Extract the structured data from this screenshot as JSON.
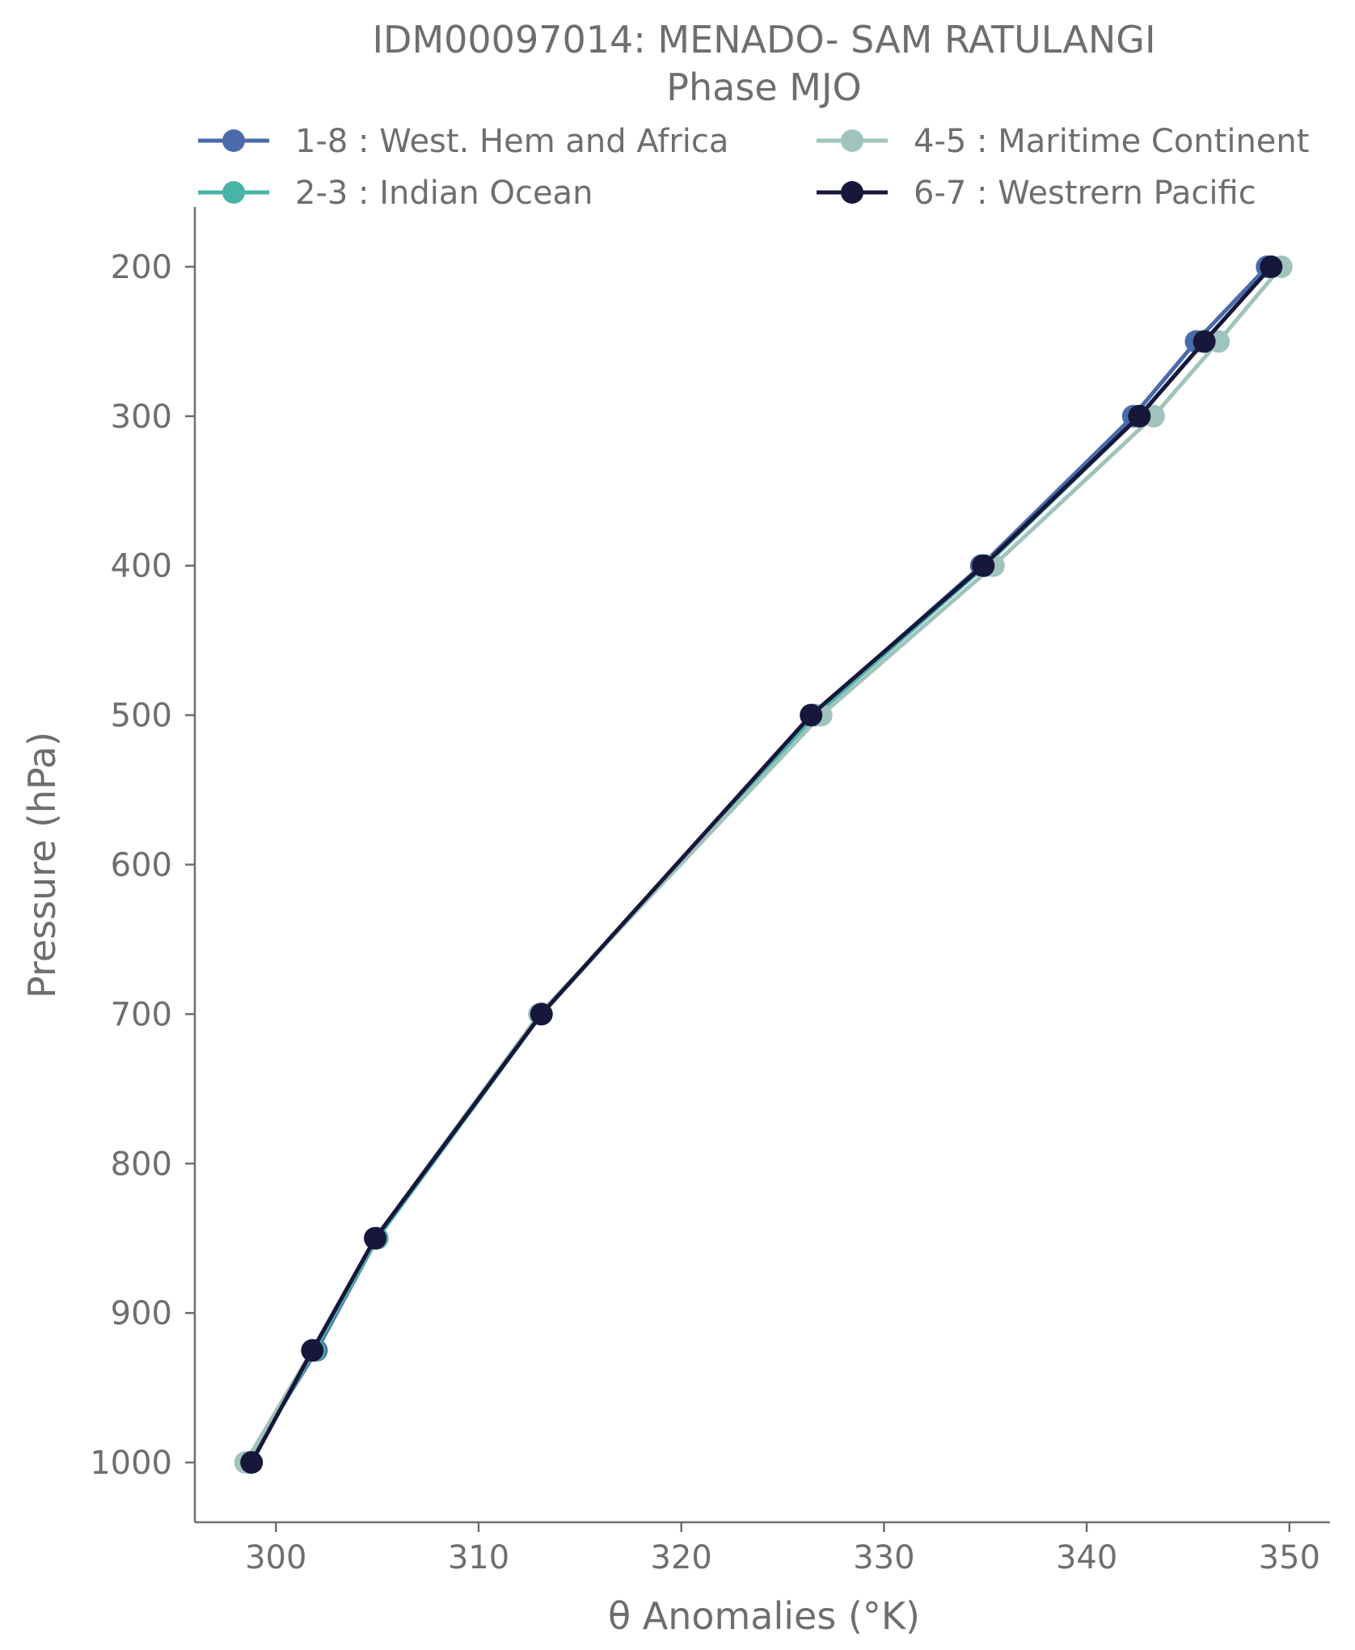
{
  "chart_data": {
    "type": "line",
    "title": "IDM00097014: MENADO- SAM RATULANGI",
    "subtitle": "Phase MJO",
    "xlabel": "θ Anomalies (°K)",
    "ylabel": "Pressure (hPa)",
    "xlim": [
      296,
      352
    ],
    "ylim": [
      1040,
      160
    ],
    "y_inverted": true,
    "xticks": [
      300,
      310,
      320,
      330,
      340,
      350
    ],
    "yticks": [
      200,
      300,
      400,
      500,
      600,
      700,
      800,
      900,
      1000
    ],
    "grid": false,
    "legend_position": "top",
    "series": [
      {
        "name": "1-8 : West. Hem and Africa",
        "color": "#4a6aab",
        "points": [
          {
            "x": 298.6,
            "y": 1000
          },
          {
            "x": 302.0,
            "y": 925
          },
          {
            "x": 305.0,
            "y": 850
          },
          {
            "x": 313.1,
            "y": 700
          },
          {
            "x": 326.5,
            "y": 500
          },
          {
            "x": 334.8,
            "y": 400
          },
          {
            "x": 342.3,
            "y": 300
          },
          {
            "x": 345.4,
            "y": 250
          },
          {
            "x": 348.9,
            "y": 200
          }
        ]
      },
      {
        "name": "2-3 : Indian Ocean",
        "color": "#49b3a8",
        "points": [
          {
            "x": 298.7,
            "y": 1000
          },
          {
            "x": 301.9,
            "y": 925
          },
          {
            "x": 305.0,
            "y": 850
          },
          {
            "x": 313.1,
            "y": 700
          },
          {
            "x": 326.6,
            "y": 500
          },
          {
            "x": 335.0,
            "y": 400
          },
          {
            "x": 342.6,
            "y": 300
          },
          {
            "x": 345.8,
            "y": 250
          },
          {
            "x": 349.1,
            "y": 200
          }
        ]
      },
      {
        "name": "4-5 : Maritime Continent",
        "color": "#a0c3bc",
        "points": [
          {
            "x": 298.5,
            "y": 1000
          },
          {
            "x": 301.8,
            "y": 925
          },
          {
            "x": 304.9,
            "y": 850
          },
          {
            "x": 313.0,
            "y": 700
          },
          {
            "x": 326.9,
            "y": 500
          },
          {
            "x": 335.4,
            "y": 400
          },
          {
            "x": 343.3,
            "y": 300
          },
          {
            "x": 346.5,
            "y": 250
          },
          {
            "x": 349.6,
            "y": 200
          }
        ]
      },
      {
        "name": "6-7 : Westrern Pacific",
        "color": "#16173a",
        "points": [
          {
            "x": 298.8,
            "y": 1000
          },
          {
            "x": 301.8,
            "y": 925
          },
          {
            "x": 304.9,
            "y": 850
          },
          {
            "x": 313.1,
            "y": 700
          },
          {
            "x": 326.4,
            "y": 500
          },
          {
            "x": 334.9,
            "y": 400
          },
          {
            "x": 342.6,
            "y": 300
          },
          {
            "x": 345.8,
            "y": 250
          },
          {
            "x": 349.1,
            "y": 200
          }
        ]
      }
    ]
  }
}
